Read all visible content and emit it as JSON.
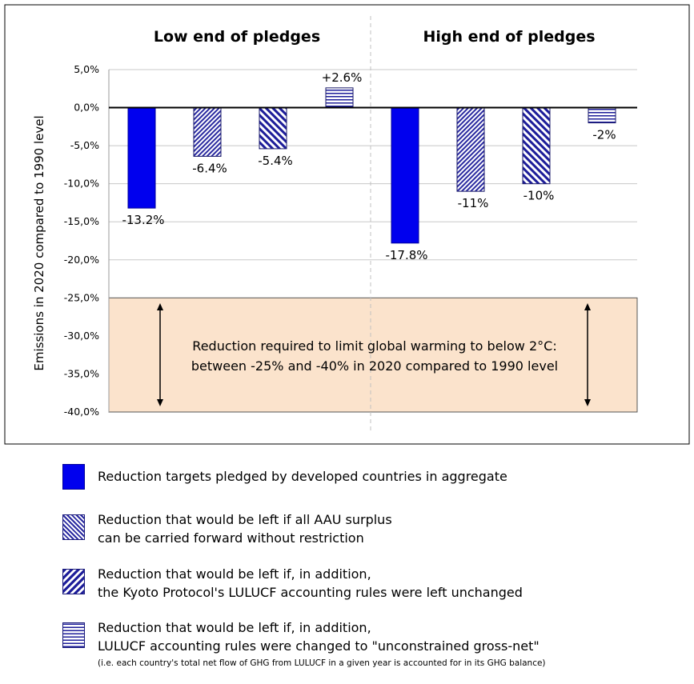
{
  "chart_data": {
    "type": "bar",
    "ylabel": "Emissions in 2020 compared to 1990 level",
    "ylim": [
      -40,
      5
    ],
    "y_ticks": [
      "5,0%",
      "0,0%",
      "-5,0%",
      "-10,0%",
      "-15,0%",
      "-20,0%",
      "-25,0%",
      "-30,0%",
      "-35,0%",
      "-40,0%"
    ],
    "y_tick_values": [
      5,
      0,
      -5,
      -10,
      -15,
      -20,
      -25,
      -30,
      -35,
      -40
    ],
    "grid": true,
    "panels": [
      {
        "title": "Low end of pledges",
        "values": [
          -13.2,
          -6.4,
          -5.4,
          2.6
        ],
        "labels": [
          "-13.2%",
          "-6.4%",
          "-5.4%",
          "+2.6%"
        ]
      },
      {
        "title": "High end of pledges",
        "values": [
          -17.8,
          -11,
          -10,
          -2
        ],
        "labels": [
          "-17.8%",
          "-11%",
          "-10%",
          "-2%"
        ]
      }
    ],
    "series_patterns": [
      "solid",
      "crosshatch",
      "diagonal",
      "horizontal"
    ],
    "colors": {
      "solid": "#0000ee",
      "pattern": "#1e1e9a",
      "band": "#fbe3cc",
      "band_border": "#555555"
    },
    "band": {
      "from": -25,
      "to": -40,
      "text_lines": [
        "Reduction required to limit global warming to below 2°C:",
        "between -25% and -40% in 2020 compared to 1990 level"
      ]
    },
    "legend": [
      {
        "lines": [
          "Reduction targets pledged by developed countries in aggregate"
        ]
      },
      {
        "lines": [
          "Reduction that would be left if all AAU surplus",
          "can be carried forward without restriction"
        ]
      },
      {
        "lines": [
          "Reduction that would be left if, in addition,",
          "the Kyoto Protocol's LULUCF accounting rules were left unchanged"
        ]
      },
      {
        "lines": [
          "Reduction that would be left if, in addition,",
          "LULUCF accounting rules were changed to \"unconstrained gross-net\""
        ],
        "note": "(i.e. each country's total net flow of GHG from LULUCF in a given year is accounted for in its GHG balance)"
      }
    ]
  }
}
